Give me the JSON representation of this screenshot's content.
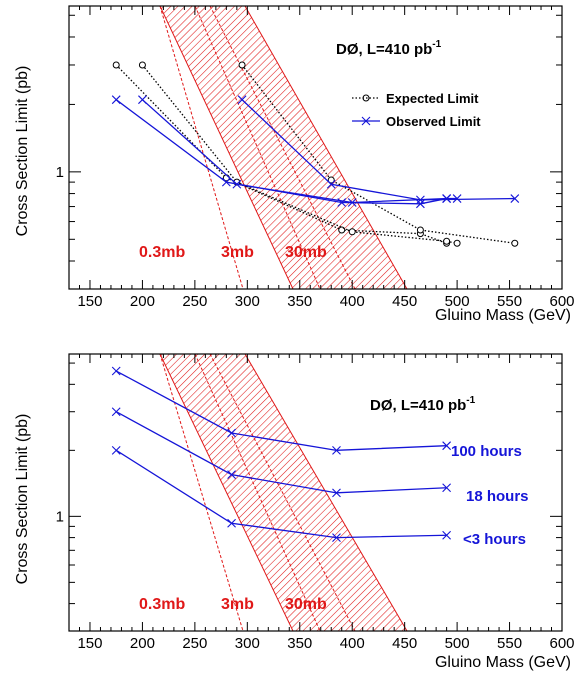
{
  "chart_data": [
    {
      "type": "line",
      "experiment_label": "DØ, L=410 pb",
      "experiment_label_sup": "-1",
      "xlabel": "Gluino Mass (GeV)",
      "ylabel": "Cross Section Limit (pb)",
      "xlim": [
        130,
        600
      ],
      "ylim": [
        0.3,
        5.5
      ],
      "yscale": "log",
      "xticks": [
        "150",
        "200",
        "250",
        "300",
        "350",
        "400",
        "450",
        "500",
        "550",
        "600"
      ],
      "yticks": [
        "1"
      ],
      "band_labels": [
        "0.3mb",
        "3mb",
        "30mb"
      ],
      "legend": {
        "placement": "top-right",
        "entries": [
          {
            "label": "Expected Limit",
            "style": "dotted-circle"
          },
          {
            "label": "Observed Limit",
            "style": "solid-cross"
          }
        ]
      },
      "series": [
        {
          "group": "Expected Limit",
          "color": "#000000",
          "x": [
            175,
            280,
            390,
            465,
            490
          ],
          "y": [
            3.0,
            0.94,
            0.55,
            0.53,
            0.48
          ]
        },
        {
          "group": "Expected Limit",
          "color": "#000000",
          "x": [
            200,
            290,
            400,
            490,
            500
          ],
          "y": [
            3.0,
            0.9,
            0.54,
            0.49,
            0.48
          ]
        },
        {
          "group": "Expected Limit",
          "color": "#000000",
          "x": [
            295,
            380,
            465,
            555
          ],
          "y": [
            3.0,
            0.92,
            0.55,
            0.48
          ]
        },
        {
          "group": "Observed Limit",
          "color": "#1515d8",
          "x": [
            175,
            280,
            390,
            465,
            490
          ],
          "y": [
            2.1,
            0.9,
            0.73,
            0.72,
            0.76
          ]
        },
        {
          "group": "Observed Limit",
          "color": "#1515d8",
          "x": [
            200,
            290,
            400,
            490,
            500
          ],
          "y": [
            2.1,
            0.88,
            0.73,
            0.76,
            0.76
          ]
        },
        {
          "group": "Observed Limit",
          "color": "#1515d8",
          "x": [
            295,
            380,
            465,
            555
          ],
          "y": [
            2.1,
            0.88,
            0.75,
            0.76
          ]
        }
      ],
      "bands": [
        {
          "label": "0.3mb",
          "color": "#e01818"
        },
        {
          "label": "3mb",
          "color": "#e01818"
        },
        {
          "label": "30mb",
          "color": "#e01818"
        }
      ]
    },
    {
      "type": "line",
      "experiment_label": "DØ, L=410 pb",
      "experiment_label_sup": "-1",
      "xlabel": "Gluino Mass (GeV)",
      "ylabel": "Cross Section Limit (pb)",
      "xlim": [
        130,
        600
      ],
      "ylim": [
        0.3,
        5.5
      ],
      "yscale": "log",
      "xticks": [
        "150",
        "200",
        "250",
        "300",
        "350",
        "400",
        "450",
        "500",
        "550",
        "600"
      ],
      "yticks": [
        "1"
      ],
      "band_labels": [
        "0.3mb",
        "3mb",
        "30mb"
      ],
      "series": [
        {
          "name": "100 hours",
          "color": "#1515d8",
          "x": [
            175,
            285,
            385,
            490
          ],
          "y": [
            4.6,
            2.4,
            2.0,
            2.1
          ]
        },
        {
          "name": "18 hours",
          "color": "#1515d8",
          "x": [
            175,
            285,
            385,
            490
          ],
          "y": [
            3.0,
            1.55,
            1.28,
            1.35
          ]
        },
        {
          "name": "<3 hours",
          "color": "#1515d8",
          "x": [
            175,
            285,
            385,
            490
          ],
          "y": [
            2.0,
            0.93,
            0.8,
            0.82
          ]
        }
      ],
      "bands": [
        {
          "label": "0.3mb",
          "color": "#e01818"
        },
        {
          "label": "3mb",
          "color": "#e01818"
        },
        {
          "label": "30mb",
          "color": "#e01818"
        }
      ]
    }
  ]
}
